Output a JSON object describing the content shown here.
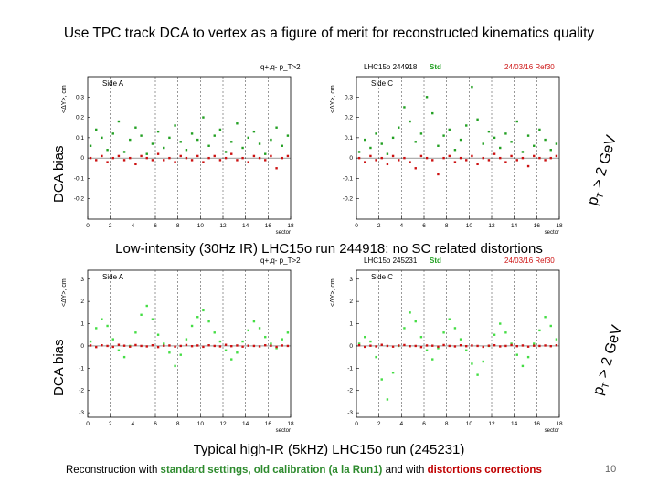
{
  "slide": {
    "title": "Use TPC track DCA to vertex as a figure of merit for reconstructed kinematics quality",
    "page_number": "10",
    "footer": {
      "prefix": "Reconstruction with ",
      "std_text": "standard settings, old calibration (a la Run1)",
      "mid": " and with ",
      "dist_text": "distortions corrections"
    }
  },
  "colors": {
    "std": "#22a022",
    "std_light": "#44dd44",
    "corr": "#cc1111",
    "grid": "#333333"
  },
  "chart_data": [
    {
      "type": "scatter",
      "id": "low-ir",
      "header": "q+,q- p_T>2",
      "run_label": "LHC15o 244918",
      "std_label": "Std",
      "ref_label": "24/03/16 Ref30",
      "side_labels": [
        "Side A",
        "Side C"
      ],
      "ylabel": "<ΔY>, cm",
      "xlabel": "sector",
      "dca_label": "DCA bias",
      "pt_label": "p",
      "pt_sub": "T",
      "pt_suffix": " > 2 GeV",
      "caption": "Low-intensity (30Hz IR) LHC15o run 244918: no SC related distortions",
      "xlim": [
        0,
        18
      ],
      "ylim": [
        -0.3,
        0.4
      ],
      "yticks": [
        -0.2,
        -0.1,
        0,
        0.1,
        0.2,
        0.3
      ],
      "ytick_labels": [
        "-0.2",
        "-0.1",
        "0",
        "0.1",
        "0.2",
        "0.3"
      ],
      "xticks": [
        0,
        2,
        4,
        6,
        8,
        10,
        12,
        14,
        16,
        18
      ],
      "xtick_labels": [
        "0",
        "2",
        "4",
        "6",
        "8",
        "10",
        "12",
        "14",
        "16",
        "18"
      ],
      "series": [
        {
          "name": "Std Side A",
          "values": [
            0.06,
            0.14,
            0.1,
            0.04,
            0.12,
            0.18,
            0.03,
            0.09,
            0.15,
            0.11,
            0.02,
            0.07,
            0.13,
            0.05,
            0.1,
            0.16,
            0.08,
            0.04,
            0.12,
            0.09,
            0.2,
            0.06,
            0.11,
            0.14,
            0.03,
            0.08,
            0.17,
            0.05,
            0.1,
            0.13,
            0.07,
            0.02,
            0.09,
            0.15,
            0.06,
            0.11
          ]
        },
        {
          "name": "Corr Side A",
          "values": [
            0.0,
            -0.01,
            0.01,
            -0.02,
            0.0,
            0.01,
            -0.01,
            0.0,
            -0.03,
            0.01,
            0.0,
            -0.01,
            0.02,
            -0.01,
            0.0,
            -0.02,
            0.01,
            0.0,
            -0.01,
            0.01,
            -0.02,
            0.0,
            0.01,
            -0.01,
            0.0,
            0.02,
            -0.01,
            0.0,
            -0.02,
            0.01,
            0.0,
            -0.01,
            0.01,
            -0.05,
            0.0,
            0.01
          ]
        },
        {
          "name": "Std Side C",
          "values": [
            0.03,
            0.09,
            0.05,
            0.12,
            0.07,
            0.02,
            0.1,
            0.15,
            0.25,
            0.18,
            0.08,
            0.12,
            0.3,
            0.22,
            0.06,
            0.11,
            0.14,
            0.04,
            0.09,
            0.16,
            0.35,
            0.19,
            0.07,
            0.13,
            0.1,
            0.05,
            0.12,
            0.08,
            0.18,
            0.03,
            0.11,
            0.06,
            0.14,
            0.09,
            0.04,
            0.07
          ]
        },
        {
          "name": "Corr Side C",
          "values": [
            0.0,
            -0.02,
            0.01,
            -0.01,
            0.0,
            -0.03,
            0.01,
            -0.01,
            0.0,
            -0.02,
            -0.05,
            0.01,
            0.0,
            -0.01,
            -0.08,
            0.0,
            0.01,
            -0.02,
            0.0,
            -0.01,
            0.01,
            -0.03,
            0.0,
            -0.01,
            0.02,
            0.0,
            -0.02,
            0.01,
            -0.01,
            0.0,
            -0.04,
            0.01,
            0.0,
            -0.01,
            0.0,
            0.01
          ]
        }
      ]
    },
    {
      "type": "scatter",
      "id": "high-ir",
      "header": "q+,q- p_T>2",
      "run_label": "LHC15o 245231",
      "std_label": "Std",
      "ref_label": "24/03/16 Ref30",
      "side_labels": [
        "Side A",
        "Side C"
      ],
      "ylabel": "<ΔY>, cm",
      "xlabel": "sector",
      "dca_label": "DCA bias",
      "pt_label": "p",
      "pt_sub": "T",
      "pt_suffix": " > 2 GeV",
      "caption": "Typical high-IR (5kHz) LHC15o run (245231)",
      "xlim": [
        0,
        18
      ],
      "ylim": [
        -3.2,
        3.4
      ],
      "yticks": [
        -3,
        -2,
        -1,
        0,
        1,
        2,
        3
      ],
      "ytick_labels": [
        "-3",
        "-2",
        "-1",
        "0",
        "1",
        "2",
        "3"
      ],
      "xticks": [
        0,
        2,
        4,
        6,
        8,
        10,
        12,
        14,
        16,
        18
      ],
      "xtick_labels": [
        "0",
        "2",
        "4",
        "6",
        "8",
        "10",
        "12",
        "14",
        "16",
        "18"
      ],
      "series": [
        {
          "name": "Std Side A",
          "values": [
            0.2,
            0.8,
            1.2,
            0.9,
            0.3,
            -0.2,
            -0.5,
            0.0,
            0.6,
            1.4,
            1.8,
            1.2,
            0.5,
            0.1,
            -0.3,
            -0.9,
            -0.4,
            0.3,
            0.9,
            1.3,
            1.6,
            1.1,
            0.6,
            0.2,
            -0.2,
            -0.6,
            -0.3,
            0.2,
            0.7,
            1.1,
            0.8,
            0.4,
            0.1,
            -0.1,
            0.3,
            0.6
          ]
        },
        {
          "name": "Corr Side A",
          "values": [
            0.02,
            -0.05,
            0.03,
            0.0,
            -0.04,
            0.05,
            0.01,
            -0.03,
            0.04,
            0.0,
            -0.02,
            0.03,
            -0.05,
            0.01,
            0.02,
            -0.03,
            0.0,
            0.04,
            -0.01,
            0.02,
            -0.04,
            0.03,
            0.0,
            -0.02,
            0.05,
            -0.01,
            0.02,
            -0.03,
            0.01,
            0.0,
            -0.02,
            0.03,
            0.01,
            -0.04,
            0.02,
            0.0
          ]
        },
        {
          "name": "Std Side C",
          "values": [
            0.1,
            0.4,
            0.2,
            -0.5,
            -1.5,
            -2.4,
            -1.2,
            0.0,
            0.8,
            1.5,
            1.1,
            0.4,
            -0.2,
            -0.6,
            -0.1,
            0.6,
            1.2,
            0.8,
            0.3,
            -0.2,
            -0.8,
            -1.3,
            -0.7,
            0.0,
            0.5,
            1.0,
            0.6,
            0.1,
            -0.4,
            -0.9,
            -0.5,
            0.1,
            0.7,
            1.3,
            0.9,
            0.3
          ]
        },
        {
          "name": "Corr Side C",
          "values": [
            0.03,
            -0.04,
            0.01,
            -0.02,
            0.05,
            0.0,
            -0.03,
            0.02,
            0.04,
            -0.01,
            0.0,
            -0.05,
            0.02,
            0.01,
            -0.03,
            0.04,
            0.0,
            -0.02,
            0.03,
            -0.01,
            0.02,
            0.0,
            -0.04,
            0.01,
            0.03,
            -0.02,
            0.0,
            0.04,
            -0.01,
            0.02,
            -0.03,
            0.01,
            0.0,
            0.02,
            -0.01,
            0.03
          ]
        }
      ]
    }
  ]
}
